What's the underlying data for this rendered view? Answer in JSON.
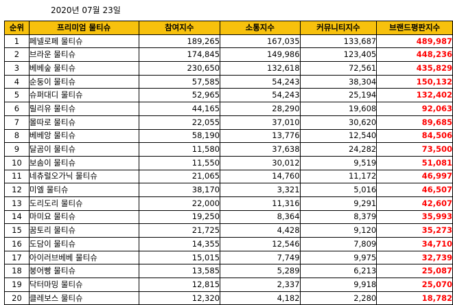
{
  "date": "2020년 07월 23일",
  "columns": [
    "순위",
    "프리미엄 물티슈",
    "참여지수",
    "소통지수",
    "커뮤니티지수",
    "브랜드평판지수"
  ],
  "rows": [
    {
      "rank": "1",
      "name": "페넬로페 물티슈",
      "participation": "189,265",
      "communication": "167,035",
      "community": "133,687",
      "brand": "489,987"
    },
    {
      "rank": "2",
      "name": "브라운 물티슈",
      "participation": "174,845",
      "communication": "149,986",
      "community": "123,405",
      "brand": "448,236"
    },
    {
      "rank": "3",
      "name": "베베숲 물티슈",
      "participation": "230,650",
      "communication": "132,618",
      "community": "72,561",
      "brand": "435,829"
    },
    {
      "rank": "4",
      "name": "순둥이 물티슈",
      "participation": "57,585",
      "communication": "54,243",
      "community": "38,304",
      "brand": "150,132"
    },
    {
      "rank": "5",
      "name": "슈퍼대디 물티슈",
      "participation": "52,965",
      "communication": "54,243",
      "community": "25,194",
      "brand": "132,402"
    },
    {
      "rank": "6",
      "name": "릴리유 물티슈",
      "participation": "44,165",
      "communication": "28,290",
      "community": "19,608",
      "brand": "92,063"
    },
    {
      "rank": "7",
      "name": "몰따로 물티슈",
      "participation": "22,055",
      "communication": "37,010",
      "community": "30,620",
      "brand": "89,685"
    },
    {
      "rank": "8",
      "name": "베베앙 물티슈",
      "participation": "58,190",
      "communication": "13,776",
      "community": "12,540",
      "brand": "84,506"
    },
    {
      "rank": "9",
      "name": "달곰이 물티슈",
      "participation": "11,580",
      "communication": "37,638",
      "community": "24,282",
      "brand": "73,500"
    },
    {
      "rank": "10",
      "name": "보솜이 물티슈",
      "participation": "11,550",
      "communication": "30,012",
      "community": "9,519",
      "brand": "51,081"
    },
    {
      "rank": "11",
      "name": "네츄럴오가닉 물티슈",
      "participation": "21,065",
      "communication": "14,760",
      "community": "11,172",
      "brand": "46,997"
    },
    {
      "rank": "12",
      "name": "미엘 물티슈",
      "participation": "38,170",
      "communication": "3,321",
      "community": "5,016",
      "brand": "46,507"
    },
    {
      "rank": "13",
      "name": "도리도리 물티슈",
      "participation": "22,000",
      "communication": "11,316",
      "community": "9,291",
      "brand": "42,607"
    },
    {
      "rank": "14",
      "name": "마미요 물티슈",
      "participation": "19,250",
      "communication": "8,364",
      "community": "8,379",
      "brand": "35,993"
    },
    {
      "rank": "15",
      "name": "꿈토리 물티슈",
      "participation": "21,725",
      "communication": "4,428",
      "community": "9,120",
      "brand": "35,273"
    },
    {
      "rank": "16",
      "name": "도담이 물티슈",
      "participation": "14,355",
      "communication": "12,546",
      "community": "7,809",
      "brand": "34,710"
    },
    {
      "rank": "17",
      "name": "아이러브베베 물티슈",
      "participation": "15,015",
      "communication": "7,749",
      "community": "9,975",
      "brand": "32,739"
    },
    {
      "rank": "18",
      "name": "붕어빵 물티슈",
      "participation": "13,585",
      "communication": "5,289",
      "community": "6,213",
      "brand": "25,087"
    },
    {
      "rank": "19",
      "name": "닥터마밍 물티슈",
      "participation": "12,815",
      "communication": "2,337",
      "community": "9,918",
      "brand": "25,070"
    },
    {
      "rank": "20",
      "name": "클레보스 물티슈",
      "participation": "12,320",
      "communication": "4,182",
      "community": "2,280",
      "brand": "18,782"
    }
  ],
  "colors": {
    "header_bg": "#f7c10d",
    "brand_index_text": "#ff0000",
    "border": "#000000"
  }
}
